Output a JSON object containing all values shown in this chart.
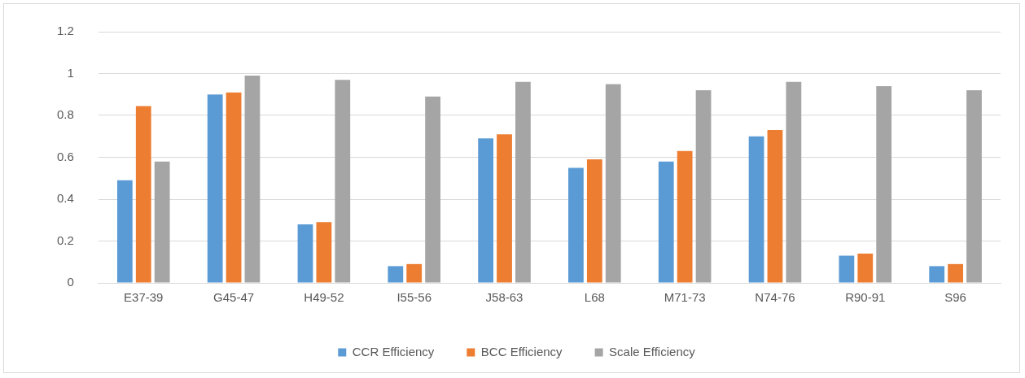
{
  "chart_data": {
    "type": "bar",
    "categories": [
      "E37-39",
      "G45-47",
      "H49-52",
      "I55-56",
      "J58-63",
      "L68",
      "M71-73",
      "N74-76",
      "R90-91",
      "S96"
    ],
    "series": [
      {
        "name": "CCR Efficiency",
        "color": "#5b9bd5",
        "values": [
          0.49,
          0.9,
          0.28,
          0.08,
          0.69,
          0.55,
          0.58,
          0.7,
          0.13,
          0.08
        ]
      },
      {
        "name": "BCC Efficiency",
        "color": "#ed7d31",
        "values": [
          0.845,
          0.91,
          0.29,
          0.09,
          0.71,
          0.59,
          0.63,
          0.73,
          0.14,
          0.09
        ]
      },
      {
        "name": "Scale Efficiency",
        "color": "#a5a5a5",
        "values": [
          0.58,
          0.99,
          0.97,
          0.89,
          0.96,
          0.95,
          0.92,
          0.96,
          0.94,
          0.92
        ]
      }
    ],
    "ylim": [
      0,
      1.2
    ],
    "yticks": [
      0,
      0.2,
      0.4,
      0.6,
      0.8,
      1,
      1.2
    ],
    "grid": "y",
    "legend": "bottom"
  }
}
